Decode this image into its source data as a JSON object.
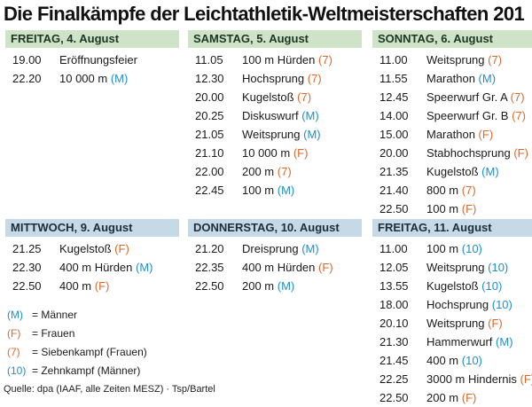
{
  "title": "Die Finalkämpfe der Leichtathletik-Weltmeisterschaften 201",
  "days": [
    {
      "header": "FREITAG, 4. August",
      "events": [
        {
          "time": "19.00",
          "name": "Eröffnungsfeier",
          "cat": ""
        },
        {
          "time": "22.20",
          "name": "10 000 m",
          "cat": "M"
        }
      ]
    },
    {
      "header": "SAMSTAG, 5. August",
      "events": [
        {
          "time": "11.05",
          "name": "100 m Hürden",
          "cat": "7"
        },
        {
          "time": "12.30",
          "name": "Hochsprung",
          "cat": "7"
        },
        {
          "time": "20.00",
          "name": "Kugelstoß",
          "cat": "7"
        },
        {
          "time": "20.25",
          "name": "Diskuswurf",
          "cat": "M"
        },
        {
          "time": "21.05",
          "name": "Weitsprung",
          "cat": "M"
        },
        {
          "time": "21.10",
          "name": "10 000 m",
          "cat": "F"
        },
        {
          "time": "22.00",
          "name": "200 m",
          "cat": "7"
        },
        {
          "time": "22.45",
          "name": "100 m",
          "cat": "M"
        }
      ]
    },
    {
      "header": "SONNTAG, 6. August",
      "events": [
        {
          "time": "11.00",
          "name": "Weitsprung",
          "cat": "7"
        },
        {
          "time": "11.55",
          "name": "Marathon",
          "cat": "M"
        },
        {
          "time": "12.45",
          "name": "Speerwurf Gr. A",
          "cat": "7"
        },
        {
          "time": "14.00",
          "name": "Speerwurf Gr. B",
          "cat": "7"
        },
        {
          "time": "15.00",
          "name": "Marathon",
          "cat": "F"
        },
        {
          "time": "20.00",
          "name": "Stabhochsprung",
          "cat": "F"
        },
        {
          "time": "21.35",
          "name": "Kugelstoß",
          "cat": "M"
        },
        {
          "time": "21.40",
          "name": "800 m",
          "cat": "7"
        },
        {
          "time": "22.50",
          "name": "100 m",
          "cat": "F"
        }
      ]
    },
    {
      "header": "MITTWOCH, 9. August",
      "events": [
        {
          "time": "21.25",
          "name": "Kugelstoß",
          "cat": "F"
        },
        {
          "time": "22.30",
          "name": "400 m Hürden",
          "cat": "M"
        },
        {
          "time": "22.50",
          "name": "400 m",
          "cat": "F"
        }
      ]
    },
    {
      "header": "DONNERSTAG, 10. August",
      "events": [
        {
          "time": "21.20",
          "name": "Dreisprung",
          "cat": "M"
        },
        {
          "time": "22.35",
          "name": "400 m Hürden",
          "cat": "F"
        },
        {
          "time": "22.50",
          "name": "200 m",
          "cat": "M"
        }
      ]
    },
    {
      "header": "FREITAG, 11. August",
      "events": [
        {
          "time": "11.00",
          "name": "100 m",
          "cat": "10"
        },
        {
          "time": "12.05",
          "name": "Weitsprung",
          "cat": "10"
        },
        {
          "time": "13.55",
          "name": "Kugelstoß",
          "cat": "10"
        },
        {
          "time": "18.00",
          "name": "Hochsprung",
          "cat": "10"
        },
        {
          "time": "20.10",
          "name": "Weitsprung",
          "cat": "F"
        },
        {
          "time": "21.30",
          "name": "Hammerwurf",
          "cat": "M"
        },
        {
          "time": "21.45",
          "name": "400 m",
          "cat": "10"
        },
        {
          "time": "22.25",
          "name": "3000 m Hindernis",
          "cat": "F"
        },
        {
          "time": "22.50",
          "name": "200 m",
          "cat": "F"
        }
      ]
    }
  ],
  "legend": [
    {
      "code": "(M)",
      "desc": "= Männer",
      "cat": "M"
    },
    {
      "code": "(F)",
      "desc": "= Frauen",
      "cat": "F"
    },
    {
      "code": "(7)",
      "desc": "= Siebenkampf (Frauen)",
      "cat": "7"
    },
    {
      "code": "(10)",
      "desc": "= Zehnkampf (Männer)",
      "cat": "10"
    }
  ],
  "source": "Quelle: dpa (IAAF, alle Zeiten MESZ) · Tsp/Bartel",
  "colors": {
    "men": "#1f8fc9",
    "women": "#d9692a",
    "header_green": "#cfe3c8",
    "header_blue": "#c6d9e6"
  }
}
